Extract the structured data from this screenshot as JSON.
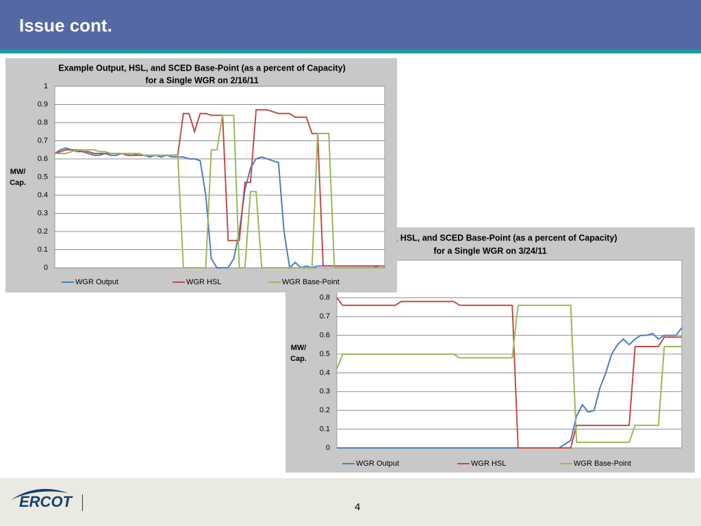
{
  "slide": {
    "title": "Issue cont.",
    "page_number": "4",
    "logo": "ERCOT"
  },
  "chart_data": [
    {
      "type": "line",
      "title": [
        "Example Output, HSL, and SCED Base-Point (as a percent of Capacity)",
        "for a Single WGR on 2/16/11"
      ],
      "ylabel": [
        "MW/",
        "Cap."
      ],
      "ylim": [
        0,
        1
      ],
      "yticks": [
        0,
        0.1,
        0.2,
        0.3,
        0.4,
        0.5,
        0.6,
        0.7,
        0.8,
        0.9,
        1
      ],
      "grid": true,
      "legend": "bottom",
      "series": [
        {
          "name": "WGR Output",
          "color": "#4a7ebb",
          "values": [
            0.63,
            0.65,
            0.66,
            0.65,
            0.64,
            0.64,
            0.63,
            0.62,
            0.62,
            0.63,
            0.62,
            0.62,
            0.63,
            0.62,
            0.62,
            0.63,
            0.62,
            0.61,
            0.62,
            0.61,
            0.62,
            0.61,
            0.61,
            0.61,
            0.6,
            0.6,
            0.59,
            0.4,
            0.05,
            0,
            0,
            0,
            0.05,
            0.2,
            0.43,
            0.55,
            0.6,
            0.61,
            0.6,
            0.59,
            0.58,
            0.2,
            0,
            0.03,
            0,
            0.01,
            0,
            0.01,
            0.01,
            0.01,
            0.01,
            0.01,
            0.01,
            0.01,
            0.01,
            0.01,
            0.01,
            0.01,
            0,
            0
          ]
        },
        {
          "name": "WGR HSL",
          "color": "#be4b48",
          "values": [
            0.63,
            0.64,
            0.65,
            0.65,
            0.65,
            0.64,
            0.64,
            0.63,
            0.63,
            0.63,
            0.63,
            0.63,
            0.63,
            0.62,
            0.62,
            0.62,
            0.62,
            0.62,
            0.62,
            0.62,
            0.62,
            0.62,
            0.62,
            0.85,
            0.85,
            0.75,
            0.85,
            0.85,
            0.84,
            0.84,
            0.84,
            0.15,
            0.15,
            0.15,
            0.47,
            0.47,
            0.87,
            0.87,
            0.87,
            0.86,
            0.85,
            0.85,
            0.85,
            0.83,
            0.83,
            0.83,
            0.74,
            0.74,
            0.01,
            0.01,
            0.01,
            0.01,
            0.01,
            0.01,
            0.01,
            0.01,
            0.01,
            0.01,
            0.01,
            0.01
          ]
        },
        {
          "name": "WGR Base-Point",
          "color": "#98b954",
          "values": [
            0.63,
            0.63,
            0.63,
            0.64,
            0.65,
            0.65,
            0.65,
            0.65,
            0.64,
            0.64,
            0.63,
            0.63,
            0.63,
            0.63,
            0.63,
            0.63,
            0.62,
            0.62,
            0.62,
            0.62,
            0.62,
            0.62,
            0.62,
            0,
            0,
            0,
            0,
            0,
            0.65,
            0.65,
            0.84,
            0.84,
            0.84,
            0,
            0,
            0.42,
            0.42,
            0,
            0,
            0,
            0,
            0,
            0,
            0,
            0,
            0,
            0,
            0.74,
            0.74,
            0.74,
            0,
            0,
            0,
            0,
            0,
            0,
            0,
            0,
            0,
            0
          ]
        }
      ]
    },
    {
      "type": "line",
      "title": [
        "ut, HSL, and SCED Base-Point (as a percent of Capacity)",
        "for a Single WGR on 3/24/11"
      ],
      "ylabel": [
        "MW/",
        "Cap."
      ],
      "ylim": [
        0,
        1
      ],
      "yticks": [
        0,
        0.1,
        0.2,
        0.3,
        0.4,
        0.5,
        0.6,
        0.7,
        0.8
      ],
      "grid": true,
      "legend": "bottom",
      "series": [
        {
          "name": "WGR Output",
          "color": "#4a7ebb",
          "values": [
            0,
            0,
            0,
            0,
            0,
            0,
            0,
            0,
            0,
            0,
            0,
            0,
            0,
            0,
            0,
            0,
            0,
            0,
            0,
            0,
            0,
            0,
            0,
            0,
            0,
            0,
            0,
            0,
            0,
            0,
            0,
            0,
            0,
            0,
            0,
            0,
            0,
            0,
            0,
            0.02,
            0.04,
            0.17,
            0.23,
            0.19,
            0.2,
            0.32,
            0.4,
            0.5,
            0.55,
            0.58,
            0.55,
            0.58,
            0.6,
            0.6,
            0.61,
            0.58,
            0.6,
            0.6,
            0.6,
            0.64
          ]
        },
        {
          "name": "WGR HSL",
          "color": "#be4b48",
          "values": [
            0.8,
            0.76,
            0.76,
            0.76,
            0.76,
            0.76,
            0.76,
            0.76,
            0.76,
            0.76,
            0.76,
            0.78,
            0.78,
            0.78,
            0.78,
            0.78,
            0.78,
            0.78,
            0.78,
            0.78,
            0.78,
            0.76,
            0.76,
            0.76,
            0.76,
            0.76,
            0.76,
            0.76,
            0.76,
            0.76,
            0.76,
            0,
            0,
            0,
            0,
            0,
            0,
            0,
            0,
            0,
            0,
            0.12,
            0.12,
            0.12,
            0.12,
            0.12,
            0.12,
            0.12,
            0.12,
            0.12,
            0.12,
            0.54,
            0.54,
            0.54,
            0.54,
            0.54,
            0.59,
            0.59,
            0.59,
            0.59
          ]
        },
        {
          "name": "WGR Base-Point",
          "color": "#98b954",
          "values": [
            0.42,
            0.5,
            0.5,
            0.5,
            0.5,
            0.5,
            0.5,
            0.5,
            0.5,
            0.5,
            0.5,
            0.5,
            0.5,
            0.5,
            0.5,
            0.5,
            0.5,
            0.5,
            0.5,
            0.5,
            0.5,
            0.48,
            0.48,
            0.48,
            0.48,
            0.48,
            0.48,
            0.48,
            0.48,
            0.48,
            0.48,
            0.76,
            0.76,
            0.76,
            0.76,
            0.76,
            0.76,
            0.76,
            0.76,
            0.76,
            0.76,
            0.03,
            0.03,
            0.03,
            0.03,
            0.03,
            0.03,
            0.03,
            0.03,
            0.03,
            0.03,
            0.12,
            0.12,
            0.12,
            0.12,
            0.12,
            0.54,
            0.54,
            0.54,
            0.54
          ]
        }
      ]
    }
  ]
}
